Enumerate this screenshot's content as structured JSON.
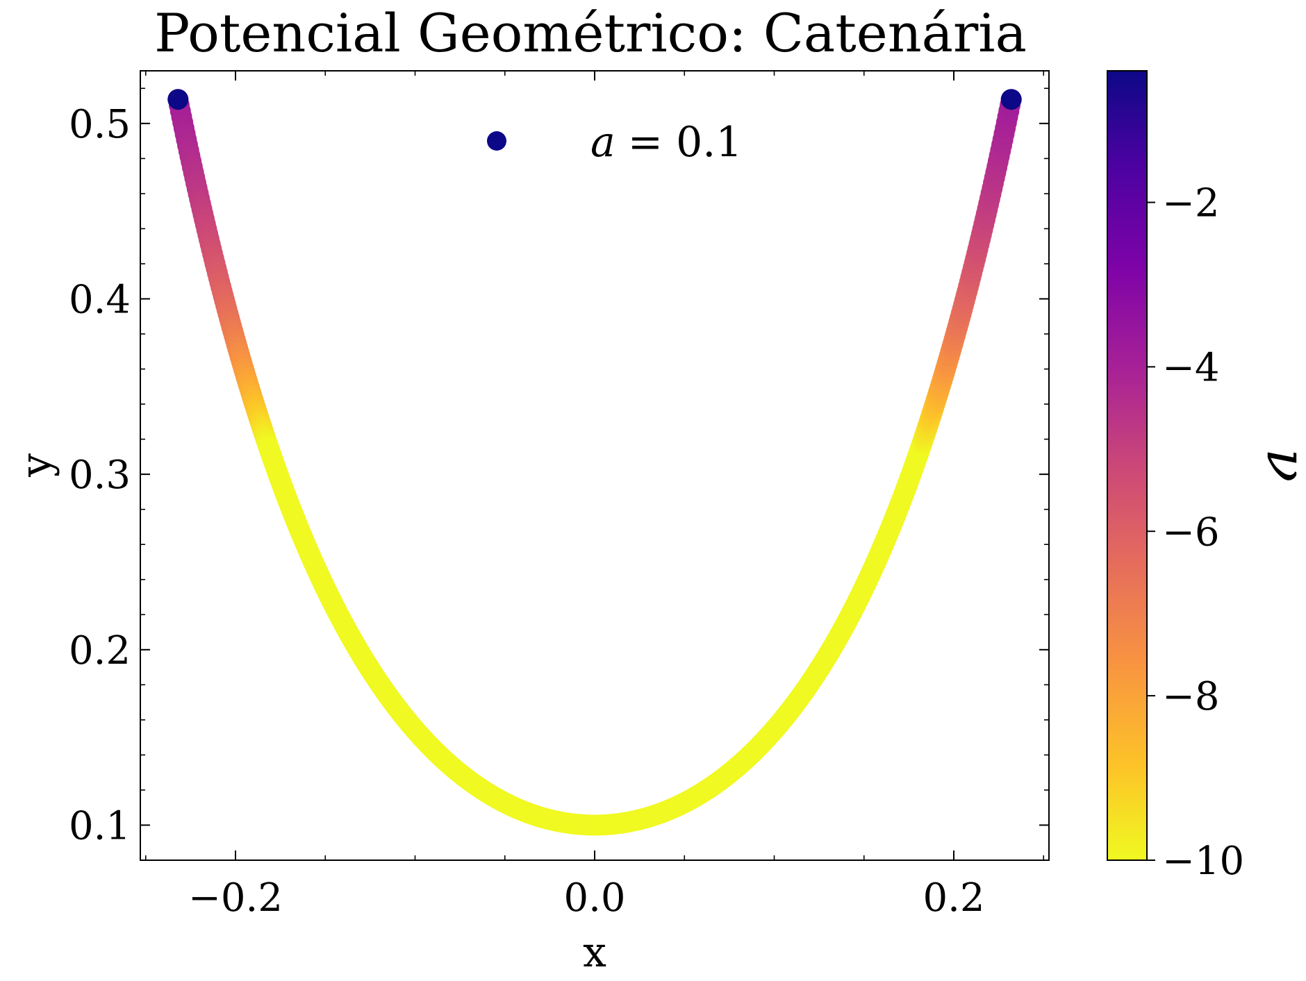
{
  "chart_data": {
    "type": "scatter",
    "title": "Potencial Geométrico: Catenária",
    "xlabel": "x",
    "ylabel": "y",
    "xlim": [
      -0.253,
      0.253
    ],
    "ylim": [
      0.08,
      0.53
    ],
    "x_ticks": [
      -0.2,
      0.0,
      0.2
    ],
    "x_tick_labels": [
      "−0.2",
      "0.0",
      "0.2"
    ],
    "y_ticks": [
      0.1,
      0.2,
      0.3,
      0.4,
      0.5
    ],
    "y_tick_labels": [
      "0.1",
      "0.2",
      "0.3",
      "0.4",
      "0.5"
    ],
    "series": [
      {
        "name": "a = 0.1",
        "legend_var": "a",
        "legend_value": "= 0.1",
        "marker_color": "#0d0887",
        "curve": "catenary",
        "a": 0.1,
        "x_range": [
          -0.232,
          0.232
        ],
        "points_sample": [
          {
            "x": -0.232,
            "y": 0.511
          },
          {
            "x": -0.15,
            "y": 0.235
          },
          {
            "x": -0.1,
            "y": 0.154
          },
          {
            "x": -0.05,
            "y": 0.113
          },
          {
            "x": 0.0,
            "y": 0.1
          },
          {
            "x": 0.05,
            "y": 0.113
          },
          {
            "x": 0.1,
            "y": 0.154
          },
          {
            "x": 0.15,
            "y": 0.235
          },
          {
            "x": 0.232,
            "y": 0.511
          }
        ]
      }
    ],
    "colorbar": {
      "label": "ν",
      "colormap": "plasma",
      "range": [
        -10,
        -0.4
      ],
      "ticks": [
        -2,
        -4,
        -6,
        -8,
        -10
      ],
      "tick_labels": [
        "−2",
        "−4",
        "−6",
        "−8",
        "−10"
      ]
    },
    "legend_position": "upper-center",
    "grid": false
  }
}
